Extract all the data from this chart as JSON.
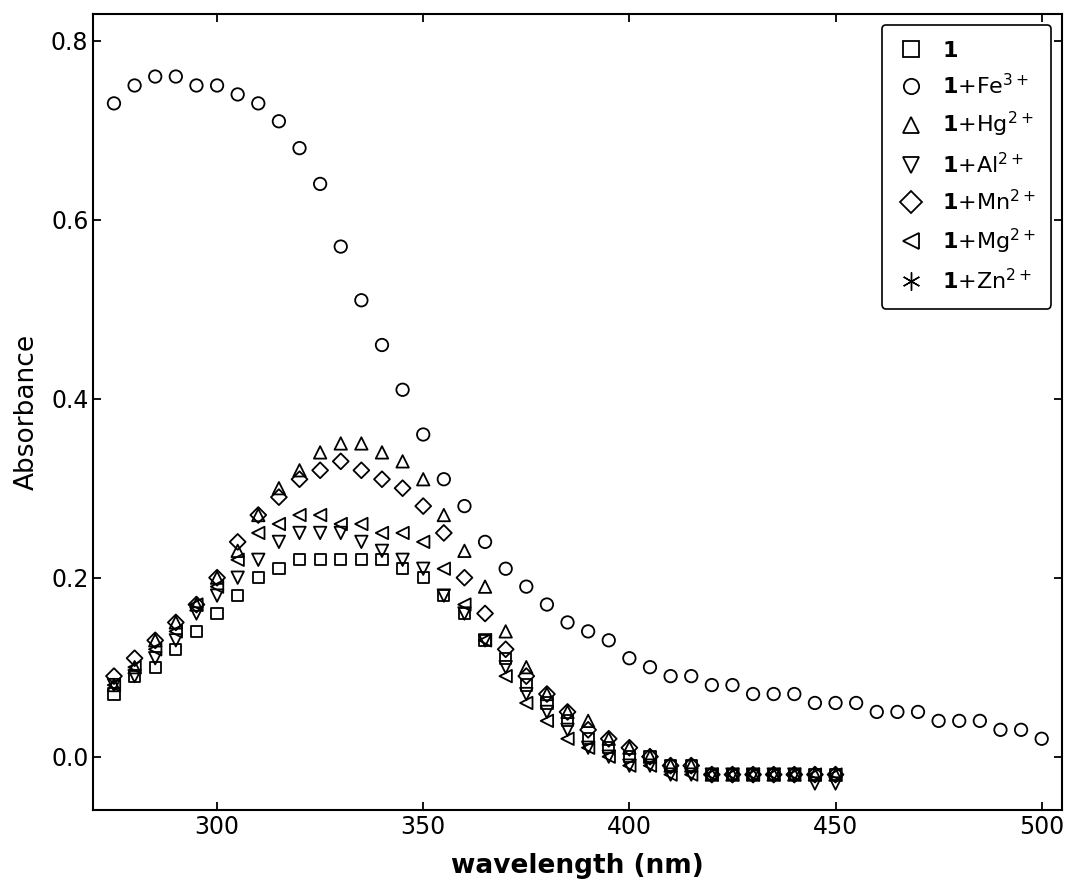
{
  "xlabel": "wavelength (nm)",
  "ylabel": "Absorbance",
  "xlim": [
    270,
    505
  ],
  "ylim": [
    -0.06,
    0.83
  ],
  "yticks": [
    0.0,
    0.2,
    0.4,
    0.6,
    0.8
  ],
  "xticks": [
    300,
    350,
    400,
    450,
    500
  ],
  "background_color": "#ffffff",
  "fe3_x": [
    275,
    280,
    285,
    290,
    295,
    300,
    305,
    310,
    315,
    320,
    325,
    330,
    335,
    340,
    345,
    350,
    355,
    360,
    365,
    370,
    375,
    380,
    385,
    390,
    395,
    400,
    405,
    410,
    415,
    420,
    425,
    430,
    435,
    440,
    445,
    450,
    455,
    460,
    465,
    470,
    475,
    480,
    485,
    490,
    495,
    500
  ],
  "fe3_y": [
    0.73,
    0.75,
    0.76,
    0.76,
    0.75,
    0.75,
    0.74,
    0.73,
    0.71,
    0.68,
    0.64,
    0.57,
    0.51,
    0.46,
    0.41,
    0.36,
    0.31,
    0.28,
    0.24,
    0.21,
    0.19,
    0.17,
    0.15,
    0.14,
    0.13,
    0.11,
    0.1,
    0.09,
    0.09,
    0.08,
    0.08,
    0.07,
    0.07,
    0.07,
    0.06,
    0.06,
    0.06,
    0.05,
    0.05,
    0.05,
    0.04,
    0.04,
    0.04,
    0.03,
    0.03,
    0.02
  ],
  "hg2_x": [
    275,
    280,
    285,
    290,
    295,
    300,
    305,
    310,
    315,
    320,
    325,
    330,
    335,
    340,
    345,
    350,
    355,
    360,
    365,
    370,
    375,
    380,
    385,
    390,
    395,
    400,
    405,
    410,
    415,
    420,
    425,
    430,
    435,
    440,
    445,
    450
  ],
  "hg2_y": [
    0.08,
    0.1,
    0.13,
    0.15,
    0.17,
    0.2,
    0.23,
    0.27,
    0.3,
    0.32,
    0.34,
    0.35,
    0.35,
    0.34,
    0.33,
    0.31,
    0.27,
    0.23,
    0.19,
    0.14,
    0.1,
    0.07,
    0.05,
    0.04,
    0.02,
    0.01,
    0.0,
    -0.01,
    -0.01,
    -0.02,
    -0.02,
    -0.02,
    -0.02,
    -0.02,
    -0.02,
    -0.02
  ],
  "al3_x": [
    275,
    280,
    285,
    290,
    295,
    300,
    305,
    310,
    315,
    320,
    325,
    330,
    335,
    340,
    345,
    350,
    355,
    360,
    365,
    370,
    375,
    380,
    385,
    390,
    395,
    400,
    405,
    410,
    415,
    420,
    425,
    430,
    435,
    440,
    445,
    450
  ],
  "al3_y": [
    0.08,
    0.09,
    0.11,
    0.13,
    0.16,
    0.18,
    0.2,
    0.22,
    0.24,
    0.25,
    0.25,
    0.25,
    0.24,
    0.23,
    0.22,
    0.21,
    0.18,
    0.16,
    0.13,
    0.1,
    0.07,
    0.05,
    0.03,
    0.01,
    0.0,
    -0.01,
    -0.01,
    -0.02,
    -0.02,
    -0.02,
    -0.02,
    -0.02,
    -0.02,
    -0.02,
    -0.03,
    -0.03
  ],
  "mn2_x": [
    275,
    280,
    285,
    290,
    295,
    300,
    305,
    310,
    315,
    320,
    325,
    330,
    335,
    340,
    345,
    350,
    355,
    360,
    365,
    370,
    375,
    380,
    385,
    390,
    395,
    400,
    405,
    410,
    415,
    420,
    425,
    430,
    435,
    440,
    445,
    450
  ],
  "mn2_y": [
    0.09,
    0.11,
    0.13,
    0.15,
    0.17,
    0.2,
    0.24,
    0.27,
    0.29,
    0.31,
    0.32,
    0.33,
    0.32,
    0.31,
    0.3,
    0.28,
    0.25,
    0.2,
    0.16,
    0.12,
    0.09,
    0.07,
    0.05,
    0.03,
    0.02,
    0.01,
    0.0,
    -0.01,
    -0.01,
    -0.02,
    -0.02,
    -0.02,
    -0.02,
    -0.02,
    -0.02,
    -0.02
  ],
  "mg2_x": [
    275,
    280,
    285,
    290,
    295,
    300,
    305,
    310,
    315,
    320,
    325,
    330,
    335,
    340,
    345,
    350,
    355,
    360,
    365,
    370,
    375,
    380,
    385,
    390,
    395,
    400,
    405,
    410,
    415,
    420,
    425,
    430,
    435,
    440,
    445,
    450
  ],
  "mg2_y": [
    0.08,
    0.1,
    0.12,
    0.14,
    0.17,
    0.19,
    0.22,
    0.25,
    0.26,
    0.27,
    0.27,
    0.26,
    0.26,
    0.25,
    0.25,
    0.24,
    0.21,
    0.17,
    0.13,
    0.09,
    0.06,
    0.04,
    0.02,
    0.01,
    0.0,
    -0.01,
    -0.01,
    -0.02,
    -0.02,
    -0.02,
    -0.02,
    -0.02,
    -0.02,
    -0.02,
    -0.02,
    -0.02
  ],
  "probe_x": [
    275,
    280,
    285,
    290,
    295,
    300,
    305,
    310,
    315,
    320,
    325,
    330,
    335,
    340,
    345,
    350,
    355,
    360,
    365,
    370,
    375,
    380,
    385,
    390,
    395,
    400,
    405,
    410,
    415,
    420,
    425,
    430,
    435,
    440,
    445,
    450
  ],
  "probe_y": [
    0.07,
    0.09,
    0.1,
    0.12,
    0.14,
    0.16,
    0.18,
    0.2,
    0.21,
    0.22,
    0.22,
    0.22,
    0.22,
    0.22,
    0.21,
    0.2,
    0.18,
    0.16,
    0.13,
    0.11,
    0.08,
    0.06,
    0.04,
    0.02,
    0.01,
    0.0,
    0.0,
    -0.01,
    -0.01,
    -0.02,
    -0.02,
    -0.02,
    -0.02,
    -0.02,
    -0.02,
    -0.02
  ],
  "zn2_x": [
    275,
    280,
    285,
    290,
    295,
    300,
    305,
    310,
    315,
    320,
    325,
    330,
    335,
    340,
    345,
    350,
    355,
    360,
    365,
    370,
    375,
    380,
    385,
    390,
    395,
    400,
    405,
    410,
    415,
    420,
    425,
    430,
    435,
    440,
    445,
    450
  ],
  "zn2_y": [
    0.07,
    0.09,
    0.11,
    0.13,
    0.14,
    0.16,
    0.17,
    0.17,
    0.17,
    0.17,
    0.17,
    0.17,
    0.18,
    0.18,
    0.19,
    0.19,
    0.18,
    0.17,
    0.16,
    0.14,
    0.12,
    0.09,
    0.07,
    0.05,
    0.04,
    0.02,
    0.01,
    0.0,
    -0.01,
    -0.01,
    -0.02,
    -0.02,
    -0.02,
    -0.02,
    -0.02,
    -0.02
  ]
}
